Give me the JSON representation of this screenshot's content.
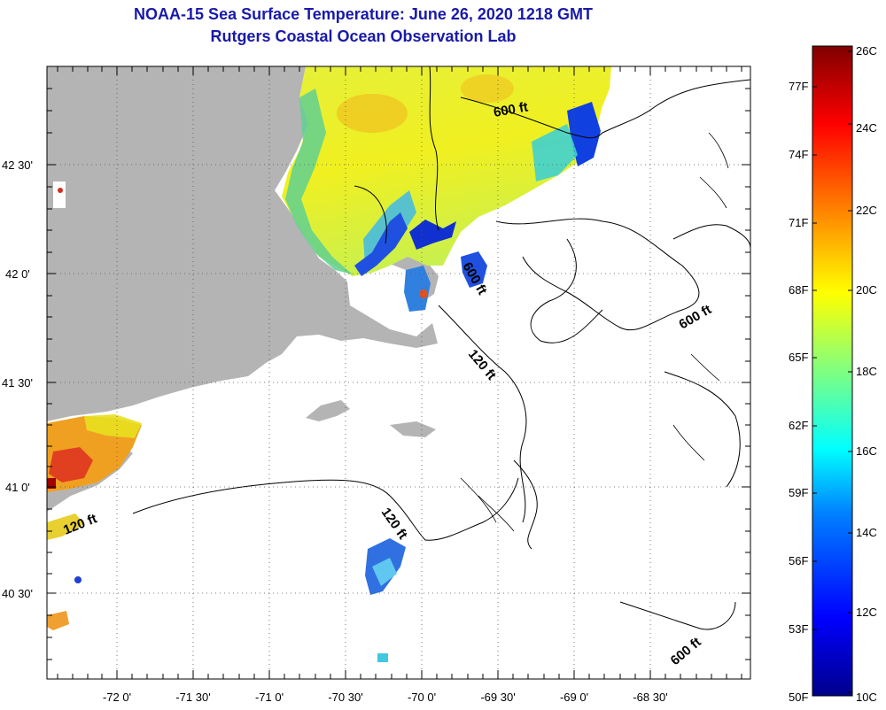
{
  "title": {
    "line1": "NOAA-15 Sea Surface Temperature:  June 26, 2020 1218 GMT",
    "line2": "Rutgers Coastal Ocean Observation Lab"
  },
  "map": {
    "lon_labels": [
      "-72 0'",
      "-71 30'",
      "-71 0'",
      "-70 30'",
      "-70 0'",
      "-69 30'",
      "-69 0'",
      "-68 30'"
    ],
    "lat_labels": [
      "42 30'",
      "42 0'",
      "41 30'",
      "41 0'",
      "40 30'"
    ],
    "depth_labels": [
      "600 ft",
      "600 ft",
      "600 ft",
      "600 ft",
      "120 ft",
      "120 ft",
      "120 ft"
    ]
  },
  "colorbar": {
    "celsius": [
      "26C",
      "24C",
      "22C",
      "20C",
      "18C",
      "16C",
      "14C",
      "12C",
      "10C"
    ],
    "fahrenheit": [
      "77F",
      "74F",
      "71F",
      "68F",
      "65F",
      "62F",
      "59F",
      "56F",
      "53F",
      "50F"
    ],
    "colors": [
      "#00008b",
      "#0000ff",
      "#0080ff",
      "#00ffff",
      "#80ff80",
      "#ffff00",
      "#ff8000",
      "#ff0000",
      "#800000"
    ]
  }
}
